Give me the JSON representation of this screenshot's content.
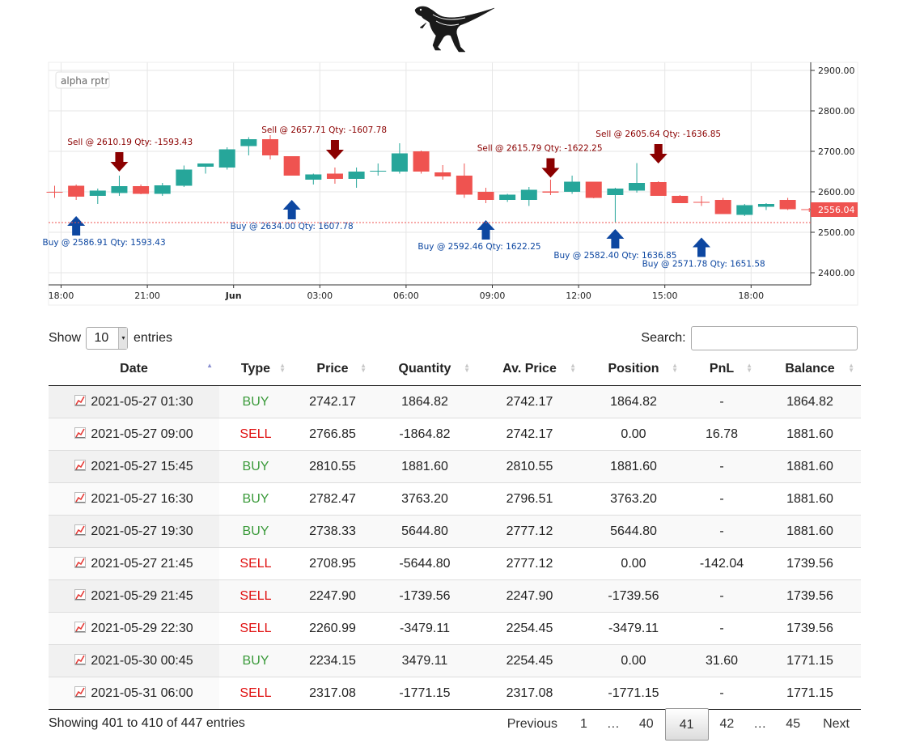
{
  "chart_data": {
    "type": "candlestick",
    "watermark": "alpha rptr",
    "y_ticks": [
      2400,
      2500,
      2600,
      2700,
      2800,
      2900
    ],
    "y_tick_labels": [
      "2400.00",
      "2500.00",
      "2600.00",
      "2700.00",
      "2800.00",
      "2900.00"
    ],
    "ylim": [
      2370,
      2920
    ],
    "x_ticks": [
      {
        "index": 0.3,
        "label": "18:00",
        "bold": false
      },
      {
        "index": 4.3,
        "label": "21:00",
        "bold": false
      },
      {
        "index": 8.3,
        "label": "Jun",
        "bold": true
      },
      {
        "index": 12.3,
        "label": "03:00",
        "bold": false
      },
      {
        "index": 16.3,
        "label": "06:00",
        "bold": false
      },
      {
        "index": 20.3,
        "label": "09:00",
        "bold": false
      },
      {
        "index": 24.3,
        "label": "12:00",
        "bold": false
      },
      {
        "index": 28.3,
        "label": "15:00",
        "bold": false
      },
      {
        "index": 32.3,
        "label": "18:00",
        "bold": false
      }
    ],
    "candles": [
      {
        "o": 2600,
        "h": 2615,
        "l": 2585,
        "c": 2598
      },
      {
        "o": 2615,
        "h": 2618,
        "l": 2580,
        "c": 2588
      },
      {
        "o": 2590,
        "h": 2608,
        "l": 2570,
        "c": 2603
      },
      {
        "o": 2597,
        "h": 2640,
        "l": 2590,
        "c": 2614
      },
      {
        "o": 2614,
        "h": 2618,
        "l": 2594,
        "c": 2595
      },
      {
        "o": 2595,
        "h": 2622,
        "l": 2590,
        "c": 2616
      },
      {
        "o": 2615,
        "h": 2665,
        "l": 2612,
        "c": 2655
      },
      {
        "o": 2662,
        "h": 2670,
        "l": 2645,
        "c": 2670
      },
      {
        "o": 2660,
        "h": 2710,
        "l": 2655,
        "c": 2705
      },
      {
        "o": 2713,
        "h": 2735,
        "l": 2690,
        "c": 2730
      },
      {
        "o": 2730,
        "h": 2740,
        "l": 2680,
        "c": 2690
      },
      {
        "o": 2688,
        "h": 2688,
        "l": 2640,
        "c": 2640
      },
      {
        "o": 2630,
        "h": 2645,
        "l": 2618,
        "c": 2643
      },
      {
        "o": 2645,
        "h": 2660,
        "l": 2620,
        "c": 2632
      },
      {
        "o": 2632,
        "h": 2660,
        "l": 2610,
        "c": 2650
      },
      {
        "o": 2650,
        "h": 2670,
        "l": 2640,
        "c": 2652
      },
      {
        "o": 2650,
        "h": 2720,
        "l": 2645,
        "c": 2695
      },
      {
        "o": 2700,
        "h": 2702,
        "l": 2645,
        "c": 2650
      },
      {
        "o": 2648,
        "h": 2666,
        "l": 2630,
        "c": 2638
      },
      {
        "o": 2640,
        "h": 2670,
        "l": 2585,
        "c": 2593
      },
      {
        "o": 2600,
        "h": 2610,
        "l": 2572,
        "c": 2580
      },
      {
        "o": 2580,
        "h": 2595,
        "l": 2575,
        "c": 2593
      },
      {
        "o": 2580,
        "h": 2612,
        "l": 2565,
        "c": 2605
      },
      {
        "o": 2601,
        "h": 2630,
        "l": 2592,
        "c": 2598
      },
      {
        "o": 2600,
        "h": 2640,
        "l": 2595,
        "c": 2625
      },
      {
        "o": 2625,
        "h": 2625,
        "l": 2584,
        "c": 2585
      },
      {
        "o": 2592,
        "h": 2610,
        "l": 2525,
        "c": 2608
      },
      {
        "o": 2603,
        "h": 2671,
        "l": 2598,
        "c": 2622
      },
      {
        "o": 2624,
        "h": 2626,
        "l": 2590,
        "c": 2590
      },
      {
        "o": 2590,
        "h": 2592,
        "l": 2575,
        "c": 2572
      },
      {
        "o": 2575,
        "h": 2590,
        "l": 2565,
        "c": 2573
      },
      {
        "o": 2580,
        "h": 2585,
        "l": 2545,
        "c": 2545
      },
      {
        "o": 2543,
        "h": 2570,
        "l": 2540,
        "c": 2567
      },
      {
        "o": 2563,
        "h": 2572,
        "l": 2555,
        "c": 2570
      },
      {
        "o": 2580,
        "h": 2585,
        "l": 2555,
        "c": 2557
      },
      {
        "o": 2557,
        "h": 2560,
        "l": 2550,
        "c": 2556
      }
    ],
    "last_price_label": "2556.04",
    "last_price_line": 2524,
    "signals": [
      {
        "index": 1,
        "side": "buy",
        "label": "Buy @ 2586.91 Qty: 1593.43",
        "price": 2540,
        "label_anchor": "start",
        "label_offset": -1.3
      },
      {
        "index": 3,
        "side": "sell",
        "label": "Sell @ 2610.19 Qty: -1593.43",
        "price": 2650,
        "label_anchor": "middle",
        "label_offset": 0.5
      },
      {
        "index": 11,
        "side": "buy",
        "label": "Buy @ 2634.00 Qty: 1607.78",
        "price": 2580,
        "label_anchor": "middle",
        "label_offset": 0
      },
      {
        "index": 13,
        "side": "sell",
        "label": "Sell @ 2657.71 Qty: -1607.78",
        "price": 2680,
        "label_anchor": "middle",
        "label_offset": -0.5
      },
      {
        "index": 20,
        "side": "buy",
        "label": "Buy @ 2592.46 Qty: 1622.25",
        "price": 2530,
        "label_anchor": "middle",
        "label_offset": -0.3
      },
      {
        "index": 23,
        "side": "sell",
        "label": "Sell @ 2615.79 Qty: -1622.25",
        "price": 2635,
        "label_anchor": "middle",
        "label_offset": -0.5
      },
      {
        "index": 26,
        "side": "buy",
        "label": "Buy @ 2582.40 Qty: 1636.85",
        "price": 2508,
        "label_anchor": "middle",
        "label_offset": 0
      },
      {
        "index": 28,
        "side": "sell",
        "label": "Sell @ 2605.64 Qty: -1636.85",
        "price": 2670,
        "label_anchor": "middle",
        "label_offset": 0
      },
      {
        "index": 30,
        "side": "buy",
        "label": "Buy @ 2571.78 Qty: 1651.58",
        "price": 2487,
        "label_anchor": "middle",
        "label_offset": 0.1
      }
    ],
    "colors": {
      "up": "#26a69a",
      "down": "#ef5350",
      "buy": "#0d47a1",
      "sell": "#8b0000",
      "last": "#ef5350"
    }
  },
  "controls": {
    "show_label": "Show",
    "entries_label": "entries",
    "length_value": "10",
    "search_label": "Search:",
    "search_value": ""
  },
  "table": {
    "columns": [
      "Date",
      "Type",
      "Price",
      "Quantity",
      "Av. Price",
      "Position",
      "PnL",
      "Balance"
    ],
    "rows": [
      {
        "date": "2021-05-27 01:30",
        "type": "BUY",
        "price": "2742.17",
        "quantity": "1864.82",
        "av_price": "2742.17",
        "position": "1864.82",
        "pnl": "-",
        "balance": "1864.82"
      },
      {
        "date": "2021-05-27 09:00",
        "type": "SELL",
        "price": "2766.85",
        "quantity": "-1864.82",
        "av_price": "2742.17",
        "position": "0.00",
        "pnl": "16.78",
        "balance": "1881.60"
      },
      {
        "date": "2021-05-27 15:45",
        "type": "BUY",
        "price": "2810.55",
        "quantity": "1881.60",
        "av_price": "2810.55",
        "position": "1881.60",
        "pnl": "-",
        "balance": "1881.60"
      },
      {
        "date": "2021-05-27 16:30",
        "type": "BUY",
        "price": "2782.47",
        "quantity": "3763.20",
        "av_price": "2796.51",
        "position": "3763.20",
        "pnl": "-",
        "balance": "1881.60"
      },
      {
        "date": "2021-05-27 19:30",
        "type": "BUY",
        "price": "2738.33",
        "quantity": "5644.80",
        "av_price": "2777.12",
        "position": "5644.80",
        "pnl": "-",
        "balance": "1881.60"
      },
      {
        "date": "2021-05-27 21:45",
        "type": "SELL",
        "price": "2708.95",
        "quantity": "-5644.80",
        "av_price": "2777.12",
        "position": "0.00",
        "pnl": "-142.04",
        "balance": "1739.56"
      },
      {
        "date": "2021-05-29 21:45",
        "type": "SELL",
        "price": "2247.90",
        "quantity": "-1739.56",
        "av_price": "2247.90",
        "position": "-1739.56",
        "pnl": "-",
        "balance": "1739.56"
      },
      {
        "date": "2021-05-29 22:30",
        "type": "SELL",
        "price": "2260.99",
        "quantity": "-3479.11",
        "av_price": "2254.45",
        "position": "-3479.11",
        "pnl": "-",
        "balance": "1739.56"
      },
      {
        "date": "2021-05-30 00:45",
        "type": "BUY",
        "price": "2234.15",
        "quantity": "3479.11",
        "av_price": "2254.45",
        "position": "0.00",
        "pnl": "31.60",
        "balance": "1771.15"
      },
      {
        "date": "2021-05-31 06:00",
        "type": "SELL",
        "price": "2317.08",
        "quantity": "-1771.15",
        "av_price": "2317.08",
        "position": "-1771.15",
        "pnl": "-",
        "balance": "1771.15"
      }
    ]
  },
  "footer": {
    "info": "Showing 401 to 410 of 447 entries",
    "pages": [
      {
        "label": "Previous",
        "kind": "nav"
      },
      {
        "label": "1",
        "kind": "page"
      },
      {
        "label": "…",
        "kind": "ellipsis"
      },
      {
        "label": "40",
        "kind": "page"
      },
      {
        "label": "41",
        "kind": "current"
      },
      {
        "label": "42",
        "kind": "page"
      },
      {
        "label": "…",
        "kind": "ellipsis"
      },
      {
        "label": "45",
        "kind": "page"
      },
      {
        "label": "Next",
        "kind": "nav"
      }
    ]
  }
}
